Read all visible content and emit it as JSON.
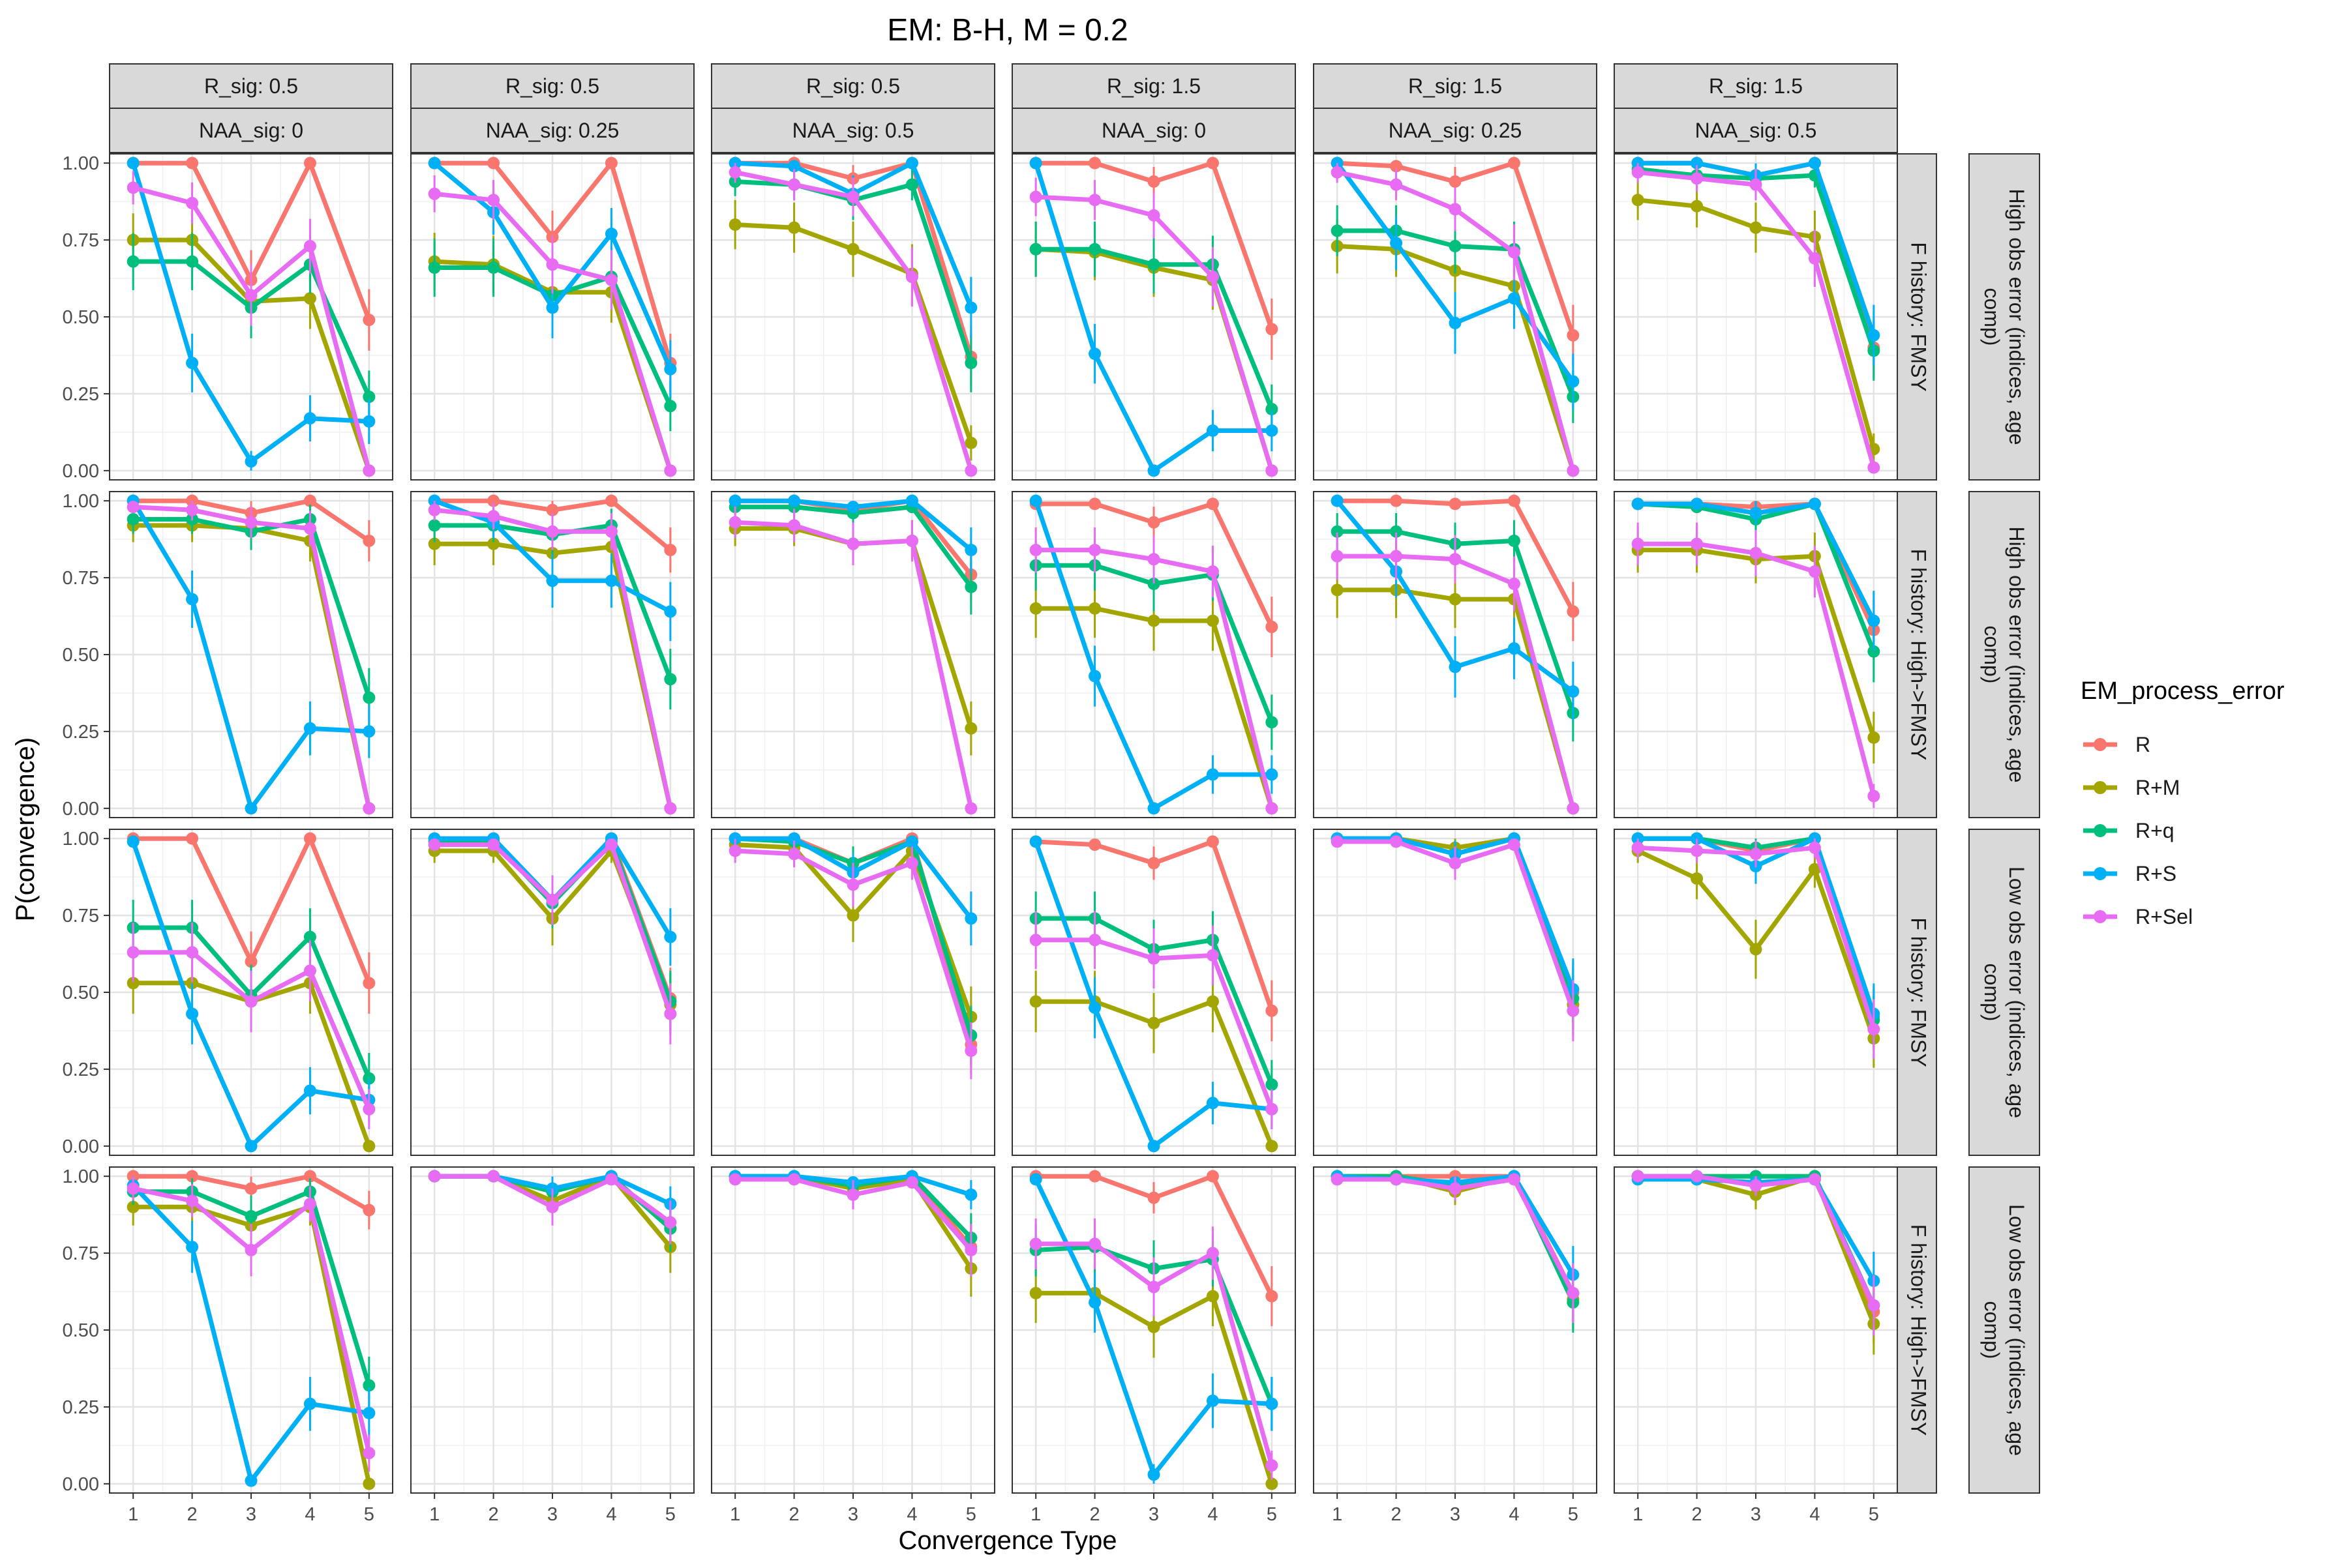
{
  "chart_data": {
    "type": "line",
    "title": "EM: B-H, M = 0.2",
    "xlabel": "Convergence Type",
    "ylabel": "P(convergence)",
    "x": [
      1,
      2,
      3,
      4,
      5
    ],
    "x_ticks": [
      "1",
      "2",
      "3",
      "4",
      "5"
    ],
    "y_ticks": [
      "0.00",
      "0.25",
      "0.50",
      "0.75",
      "1.00"
    ],
    "ylim": [
      -0.03,
      1.03
    ],
    "grid": true,
    "legend_title": "EM_process_error",
    "legend_position": "right",
    "series_names": [
      "R",
      "R+M",
      "R+q",
      "R+S",
      "R+Sel"
    ],
    "colors": [
      "#F8766D",
      "#A3A500",
      "#00BF7D",
      "#00B0F6",
      "#E76BF3"
    ],
    "col_strips": [
      [
        "R_sig: 0.5",
        "NAA_sig: 0"
      ],
      [
        "R_sig: 0.5",
        "NAA_sig: 0.25"
      ],
      [
        "R_sig: 0.5",
        "NAA_sig: 0.5"
      ],
      [
        "R_sig: 1.5",
        "NAA_sig: 0"
      ],
      [
        "R_sig: 1.5",
        "NAA_sig: 0.25"
      ],
      [
        "R_sig: 1.5",
        "NAA_sig: 0.5"
      ]
    ],
    "row_strips": [
      [
        "F history: FMSY",
        "High obs error (indices, age comp)"
      ],
      [
        "F history: High->FMSY",
        "High obs error (indices, age comp)"
      ],
      [
        "F history: FMSY",
        "Low obs error (indices, age comp)"
      ],
      [
        "F history: High->FMSY",
        "Low obs error (indices, age comp)"
      ]
    ],
    "panels": [
      [
        {
          "R": [
            1,
            1,
            0.62,
            1,
            0.49
          ],
          "R+M": [
            0.75,
            0.75,
            0.55,
            0.56,
            0
          ],
          "R+q": [
            0.68,
            0.68,
            0.53,
            0.67,
            0.24
          ],
          "R+S": [
            1,
            0.35,
            0.03,
            0.17,
            0.16
          ],
          "R+Sel": [
            0.92,
            0.87,
            0.57,
            0.73,
            0
          ]
        },
        {
          "R": [
            1,
            1,
            0.76,
            1,
            0.35
          ],
          "R+M": [
            0.68,
            0.67,
            0.58,
            0.58,
            0
          ],
          "R+q": [
            0.66,
            0.66,
            0.57,
            0.63,
            0.21
          ],
          "R+S": [
            1,
            0.84,
            0.53,
            0.77,
            0.33
          ],
          "R+Sel": [
            0.9,
            0.88,
            0.67,
            0.62,
            0
          ]
        },
        {
          "R": [
            1,
            1,
            0.95,
            1,
            0.37
          ],
          "R+M": [
            0.8,
            0.79,
            0.72,
            0.64,
            0.09
          ],
          "R+q": [
            0.94,
            0.93,
            0.88,
            0.93,
            0.35
          ],
          "R+S": [
            1,
            0.99,
            0.9,
            1,
            0.53
          ],
          "R+Sel": [
            0.97,
            0.93,
            0.89,
            0.63,
            0
          ]
        },
        {
          "R": [
            1,
            1,
            0.94,
            1,
            0.46
          ],
          "R+M": [
            0.72,
            0.71,
            0.66,
            0.62,
            0
          ],
          "R+q": [
            0.72,
            0.72,
            0.67,
            0.67,
            0.2
          ],
          "R+S": [
            1,
            0.38,
            0,
            0.13,
            0.13
          ],
          "R+Sel": [
            0.89,
            0.88,
            0.83,
            0.63,
            0
          ]
        },
        {
          "R": [
            1,
            0.99,
            0.94,
            1,
            0.44
          ],
          "R+M": [
            0.73,
            0.72,
            0.65,
            0.6,
            0
          ],
          "R+q": [
            0.78,
            0.78,
            0.73,
            0.72,
            0.24
          ],
          "R+S": [
            1,
            0.74,
            0.48,
            0.56,
            0.29
          ],
          "R+Sel": [
            0.97,
            0.93,
            0.85,
            0.71,
            0
          ]
        },
        {
          "R": [
            1,
            1,
            0.96,
            1,
            0.4
          ],
          "R+M": [
            0.88,
            0.86,
            0.79,
            0.76,
            0.07
          ],
          "R+q": [
            0.98,
            0.96,
            0.95,
            0.96,
            0.39
          ],
          "R+S": [
            1,
            1,
            0.96,
            1,
            0.44
          ],
          "R+Sel": [
            0.97,
            0.95,
            0.93,
            0.69,
            0.01
          ]
        }
      ],
      [
        {
          "R": [
            1,
            1,
            0.96,
            1,
            0.87
          ],
          "R+M": [
            0.92,
            0.92,
            0.91,
            0.87,
            0
          ],
          "R+q": [
            0.94,
            0.94,
            0.9,
            0.94,
            0.36
          ],
          "R+S": [
            1,
            0.68,
            0,
            0.26,
            0.25
          ],
          "R+Sel": [
            0.98,
            0.97,
            0.93,
            0.91,
            0
          ]
        },
        {
          "R": [
            1,
            1,
            0.97,
            1,
            0.84
          ],
          "R+M": [
            0.86,
            0.86,
            0.83,
            0.85,
            0
          ],
          "R+q": [
            0.92,
            0.92,
            0.89,
            0.92,
            0.42
          ],
          "R+S": [
            1,
            0.93,
            0.74,
            0.74,
            0.64
          ],
          "R+Sel": [
            0.97,
            0.95,
            0.9,
            0.9,
            0
          ]
        },
        {
          "R": [
            1,
            1,
            0.97,
            1,
            0.76
          ],
          "R+M": [
            0.91,
            0.91,
            0.86,
            0.87,
            0.26
          ],
          "R+q": [
            0.98,
            0.98,
            0.96,
            0.98,
            0.72
          ],
          "R+S": [
            1,
            1,
            0.98,
            1,
            0.84
          ],
          "R+Sel": [
            0.93,
            0.92,
            0.86,
            0.87,
            0
          ]
        },
        {
          "R": [
            0.99,
            0.99,
            0.93,
            0.99,
            0.59
          ],
          "R+M": [
            0.65,
            0.65,
            0.61,
            0.61,
            0
          ],
          "R+q": [
            0.79,
            0.79,
            0.73,
            0.76,
            0.28
          ],
          "R+S": [
            1,
            0.43,
            0,
            0.11,
            0.11
          ],
          "R+Sel": [
            0.84,
            0.84,
            0.81,
            0.77,
            0
          ]
        },
        {
          "R": [
            1,
            1,
            0.99,
            1,
            0.64
          ],
          "R+M": [
            0.71,
            0.71,
            0.68,
            0.68,
            0
          ],
          "R+q": [
            0.9,
            0.9,
            0.86,
            0.87,
            0.31
          ],
          "R+S": [
            1,
            0.77,
            0.46,
            0.52,
            0.38
          ],
          "R+Sel": [
            0.82,
            0.82,
            0.81,
            0.73,
            0
          ]
        },
        {
          "R": [
            0.99,
            0.99,
            0.98,
            0.99,
            0.58
          ],
          "R+M": [
            0.84,
            0.84,
            0.81,
            0.82,
            0.23
          ],
          "R+q": [
            0.99,
            0.98,
            0.94,
            0.99,
            0.51
          ],
          "R+S": [
            0.99,
            0.99,
            0.96,
            0.99,
            0.61
          ],
          "R+Sel": [
            0.86,
            0.86,
            0.83,
            0.77,
            0.04
          ]
        }
      ],
      [
        {
          "R": [
            1,
            1,
            0.6,
            1,
            0.53
          ],
          "R+M": [
            0.53,
            0.53,
            0.47,
            0.53,
            0
          ],
          "R+q": [
            0.71,
            0.71,
            0.49,
            0.68,
            0.22
          ],
          "R+S": [
            0.99,
            0.43,
            0,
            0.18,
            0.15
          ],
          "R+Sel": [
            0.63,
            0.63,
            0.47,
            0.57,
            0.12
          ]
        },
        {
          "R": [
            1,
            1,
            0.8,
            1,
            0.48
          ],
          "R+M": [
            0.96,
            0.96,
            0.74,
            0.96,
            0.46
          ],
          "R+q": [
            0.99,
            0.99,
            0.79,
            0.99,
            0.47
          ],
          "R+S": [
            1,
            1,
            0.8,
            1,
            0.68
          ],
          "R+Sel": [
            0.98,
            0.98,
            0.8,
            0.98,
            0.43
          ]
        },
        {
          "R": [
            1,
            1,
            0.92,
            1,
            0.33
          ],
          "R+M": [
            0.98,
            0.97,
            0.75,
            0.96,
            0.42
          ],
          "R+q": [
            1,
            0.99,
            0.92,
            0.99,
            0.36
          ],
          "R+S": [
            1,
            1,
            0.89,
            0.99,
            0.74
          ],
          "R+Sel": [
            0.96,
            0.95,
            0.85,
            0.92,
            0.31
          ]
        },
        {
          "R": [
            0.99,
            0.98,
            0.92,
            0.99,
            0.44
          ],
          "R+M": [
            0.47,
            0.47,
            0.4,
            0.47,
            0
          ],
          "R+q": [
            0.74,
            0.74,
            0.64,
            0.67,
            0.2
          ],
          "R+S": [
            0.99,
            0.45,
            0,
            0.14,
            0.12
          ],
          "R+Sel": [
            0.67,
            0.67,
            0.61,
            0.62,
            0.12
          ]
        },
        {
          "R": [
            1,
            1,
            0.95,
            1,
            0.5
          ],
          "R+M": [
            1,
            1,
            0.97,
            1,
            0.46
          ],
          "R+q": [
            1,
            1,
            0.95,
            1,
            0.48
          ],
          "R+S": [
            1,
            1,
            0.95,
            1,
            0.51
          ],
          "R+Sel": [
            0.99,
            0.99,
            0.92,
            0.98,
            0.44
          ]
        },
        {
          "R": [
            1,
            1,
            0.96,
            1,
            0.42
          ],
          "R+M": [
            0.96,
            0.87,
            0.64,
            0.9,
            0.35
          ],
          "R+q": [
            1,
            1,
            0.97,
            1,
            0.41
          ],
          "R+S": [
            1,
            1,
            0.91,
            1,
            0.43
          ],
          "R+Sel": [
            0.97,
            0.96,
            0.95,
            0.97,
            0.38
          ]
        }
      ],
      [
        {
          "R": [
            1,
            1,
            0.96,
            1,
            0.89
          ],
          "R+M": [
            0.9,
            0.9,
            0.84,
            0.9,
            0
          ],
          "R+q": [
            0.95,
            0.95,
            0.87,
            0.95,
            0.32
          ],
          "R+S": [
            0.97,
            0.77,
            0.01,
            0.26,
            0.23
          ],
          "R+Sel": [
            0.96,
            0.92,
            0.76,
            0.91,
            0.1
          ]
        },
        {
          "R": [
            1,
            1,
            0.95,
            1,
            0.83
          ],
          "R+M": [
            1,
            1,
            0.92,
            1,
            0.77
          ],
          "R+q": [
            1,
            1,
            0.95,
            1,
            0.83
          ],
          "R+S": [
            1,
            1,
            0.96,
            1,
            0.91
          ],
          "R+Sel": [
            1,
            1,
            0.9,
            0.99,
            0.85
          ]
        },
        {
          "R": [
            1,
            1,
            0.97,
            1,
            0.77
          ],
          "R+M": [
            1,
            1,
            0.96,
            0.99,
            0.7
          ],
          "R+q": [
            1,
            1,
            0.97,
            1,
            0.8
          ],
          "R+S": [
            1,
            1,
            0.98,
            1,
            0.94
          ],
          "R+Sel": [
            0.99,
            0.99,
            0.94,
            0.98,
            0.76
          ]
        },
        {
          "R": [
            1,
            1,
            0.93,
            1,
            0.61
          ],
          "R+M": [
            0.62,
            0.62,
            0.51,
            0.61,
            0
          ],
          "R+q": [
            0.76,
            0.77,
            0.7,
            0.73,
            0.26
          ],
          "R+S": [
            0.99,
            0.59,
            0.03,
            0.27,
            0.26
          ],
          "R+Sel": [
            0.78,
            0.78,
            0.64,
            0.75,
            0.06
          ]
        },
        {
          "R": [
            1,
            1,
            1,
            1,
            0.62
          ],
          "R+M": [
            1,
            1,
            0.95,
            1,
            0.6
          ],
          "R+q": [
            1,
            1,
            0.97,
            1,
            0.59
          ],
          "R+S": [
            1,
            0.99,
            0.98,
            1,
            0.68
          ],
          "R+Sel": [
            0.99,
            0.99,
            0.96,
            0.99,
            0.62
          ]
        },
        {
          "R": [
            1,
            1,
            1,
            1,
            0.56
          ],
          "R+M": [
            1,
            0.99,
            0.94,
            1,
            0.52
          ],
          "R+q": [
            1,
            1,
            1,
            1,
            0.58
          ],
          "R+S": [
            0.99,
            0.99,
            0.98,
            0.99,
            0.66
          ],
          "R+Sel": [
            1,
            1,
            0.97,
            0.99,
            0.58
          ]
        }
      ]
    ]
  }
}
